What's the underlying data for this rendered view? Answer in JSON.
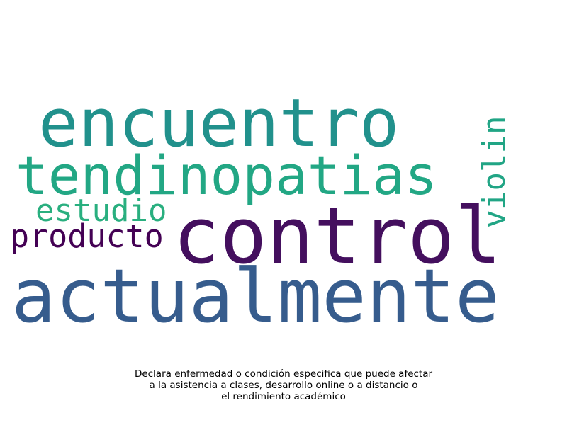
{
  "word_cloud": {
    "words": {
      "encuentro": {
        "text": "encuentro",
        "color": "#21918c"
      },
      "tendinopatias": {
        "text": "tendinopatias",
        "color": "#22a784"
      },
      "estudio": {
        "text": "estudio",
        "color": "#29af7f"
      },
      "producto": {
        "text": "producto",
        "color": "#440154"
      },
      "control": {
        "text": "control",
        "color": "#440f5e"
      },
      "actualmente": {
        "text": "actualmente",
        "color": "#365c8d"
      },
      "violin": {
        "text": "violin",
        "color": "#21a585"
      }
    }
  },
  "caption": {
    "line1": "Declara enfermedad o condición especifica que puede afectar",
    "line2": "a la asistencia a clases, desarrollo online o a distancio o",
    "line3": "el rendimiento académico"
  }
}
